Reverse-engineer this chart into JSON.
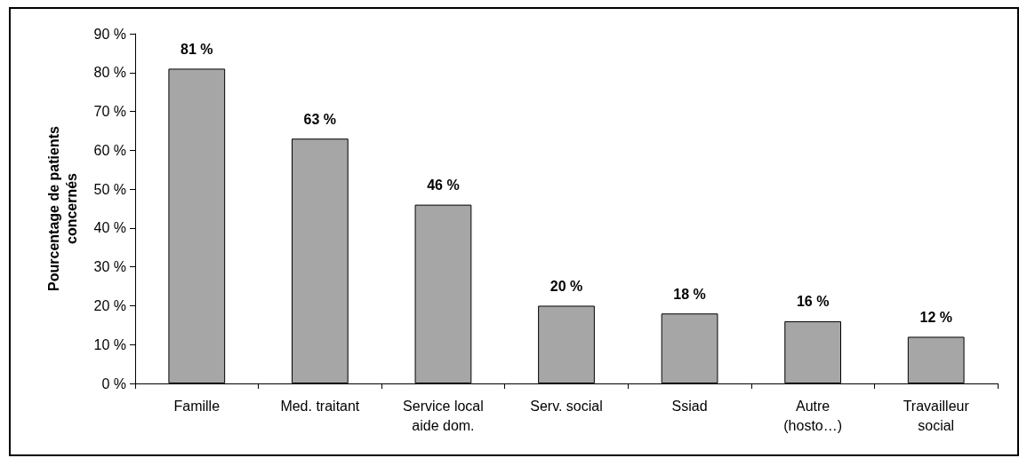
{
  "chart_data": {
    "type": "bar",
    "ylabel": "Pourcentage de patients\nconcernés",
    "categories": [
      "Famille",
      "Med. traitant",
      "Service local\naide dom.",
      "Serv. social",
      "Ssiad",
      "Autre\n(hosto…)",
      "Travailleur\nsocial"
    ],
    "values": [
      81,
      63,
      46,
      20,
      18,
      16,
      12
    ],
    "value_labels": [
      "81 %",
      "63 %",
      "46 %",
      "20 %",
      "18 %",
      "16 %",
      "12 %"
    ],
    "color": "#a6a6a6",
    "ylim": [
      0,
      90
    ],
    "yticks": [
      {
        "value": 0,
        "label": "0 %"
      },
      {
        "value": 10,
        "label": "10 %"
      },
      {
        "value": 20,
        "label": "20 %"
      },
      {
        "value": 30,
        "label": "30 %"
      },
      {
        "value": 40,
        "label": "40 %"
      },
      {
        "value": 50,
        "label": "50 %"
      },
      {
        "value": 60,
        "label": "60 %"
      },
      {
        "value": 70,
        "label": "70 %"
      },
      {
        "value": 80,
        "label": "80 %"
      },
      {
        "value": 90,
        "label": "90 %"
      }
    ],
    "grid": false
  }
}
